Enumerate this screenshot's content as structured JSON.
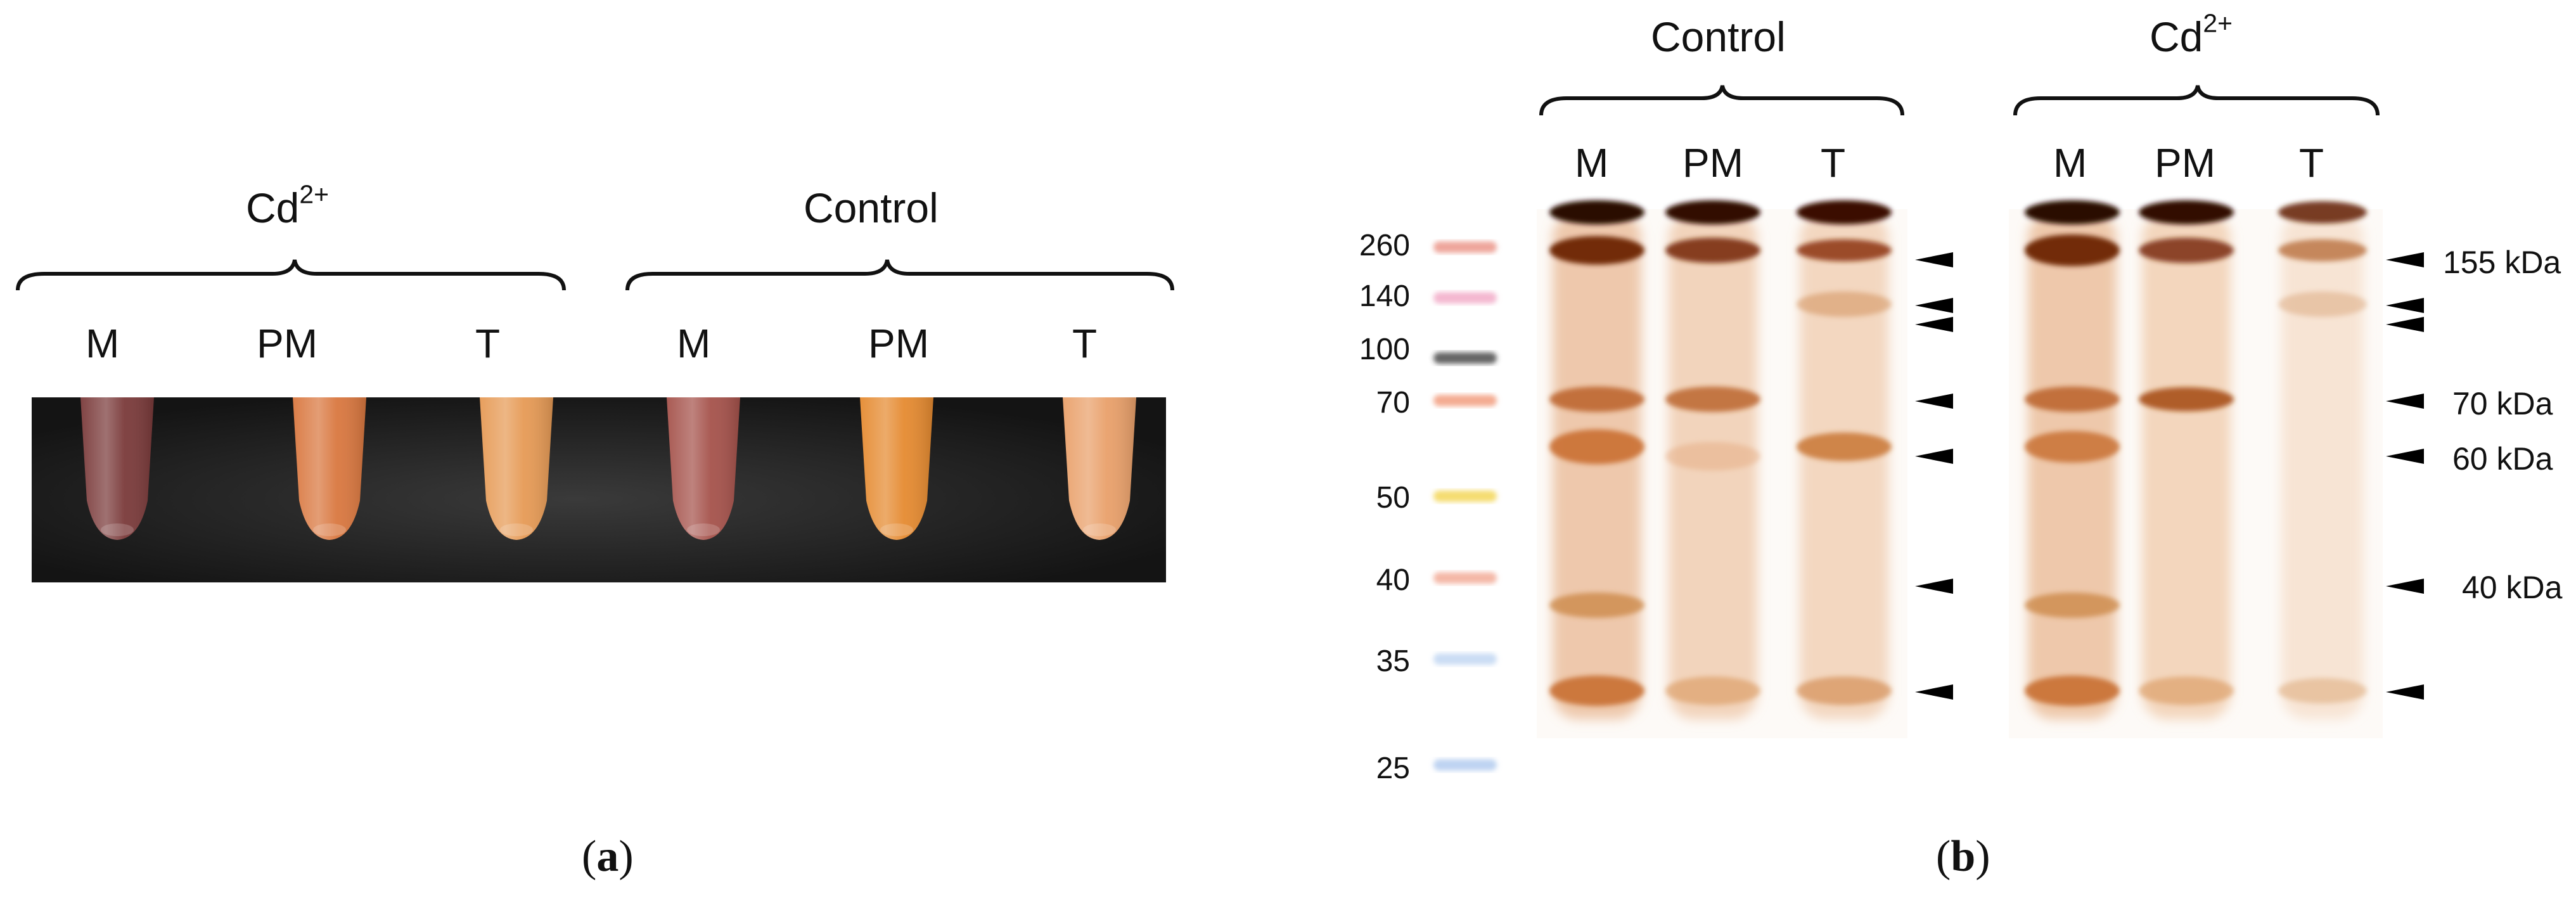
{
  "panel_a": {
    "label": "a",
    "groups": [
      {
        "name_base": "Cd",
        "name_sup": "2+",
        "lanes": [
          "M",
          "PM",
          "T"
        ]
      },
      {
        "name": "Control",
        "lanes": [
          "M",
          "PM",
          "T"
        ]
      }
    ],
    "tubes": [
      {
        "group": "Cd2+",
        "lane": "M",
        "color": "#7a3a3a"
      },
      {
        "group": "Cd2+",
        "lane": "PM",
        "color": "#d9773f"
      },
      {
        "group": "Cd2+",
        "lane": "T",
        "color": "#e69a55"
      },
      {
        "group": "Control",
        "lane": "M",
        "color": "#a5524b"
      },
      {
        "group": "Control",
        "lane": "PM",
        "color": "#e58a30"
      },
      {
        "group": "Control",
        "lane": "T",
        "color": "#e9a06a"
      }
    ]
  },
  "panel_b": {
    "label": "b",
    "groups": [
      {
        "name": "Control",
        "lanes": [
          "M",
          "PM",
          "T"
        ]
      },
      {
        "name_base": "Cd",
        "name_sup": "2+",
        "lanes": [
          "M",
          "PM",
          "T"
        ]
      }
    ],
    "marker_sizes": [
      "260",
      "140",
      "100",
      "70",
      "50",
      "40",
      "35",
      "25"
    ],
    "band_labels": [
      "155 kDa",
      "70 kDa",
      "60 kDa",
      "40 kDa"
    ]
  }
}
